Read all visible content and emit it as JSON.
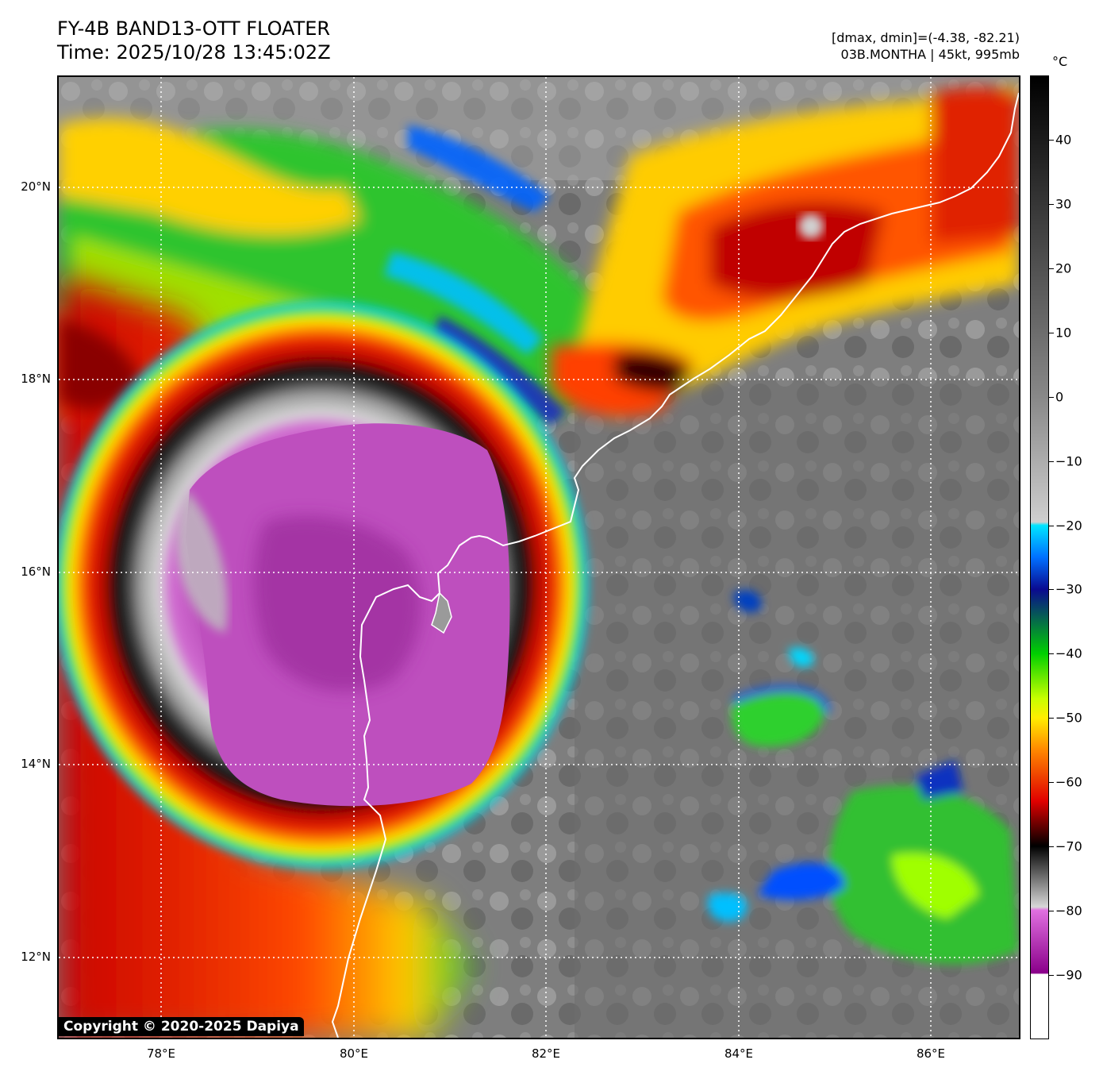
{
  "header": {
    "title_line1": "FY-4B BAND13-OTT FLOATER",
    "title_line2": "Time: 2025/10/28 13:45:02Z",
    "info_line1": "[dmax, dmin]=(-4.38, -82.21)",
    "info_line2": "03B.MONTHA | 45kt, 995mb"
  },
  "colorbar": {
    "unit": "°C",
    "ticks": [
      "40",
      "30",
      "20",
      "10",
      "0",
      "−10",
      "−20",
      "−30",
      "−40",
      "−50",
      "−60",
      "−70",
      "−80",
      "−90"
    ],
    "tick_values": [
      40,
      30,
      20,
      10,
      0,
      -10,
      -20,
      -30,
      -40,
      -50,
      -60,
      -70,
      -80,
      -90
    ],
    "range": [
      -100,
      50
    ]
  },
  "map": {
    "lat_labels": [
      "20°N",
      "18°N",
      "16°N",
      "14°N",
      "12°N"
    ],
    "lat_values": [
      20,
      18,
      16,
      14,
      12
    ],
    "lon_labels": [
      "78°E",
      "80°E",
      "82°E",
      "84°E",
      "86°E"
    ],
    "lon_values": [
      78,
      80,
      82,
      84,
      86
    ],
    "lat_range": [
      11.15,
      21.15
    ],
    "lon_range": [
      76.93,
      86.93
    ],
    "storm_center": {
      "lat": 15.9,
      "lon": 80.0
    }
  },
  "footer": {
    "copyright": "Copyright © 2020-2025 Dapiya"
  }
}
